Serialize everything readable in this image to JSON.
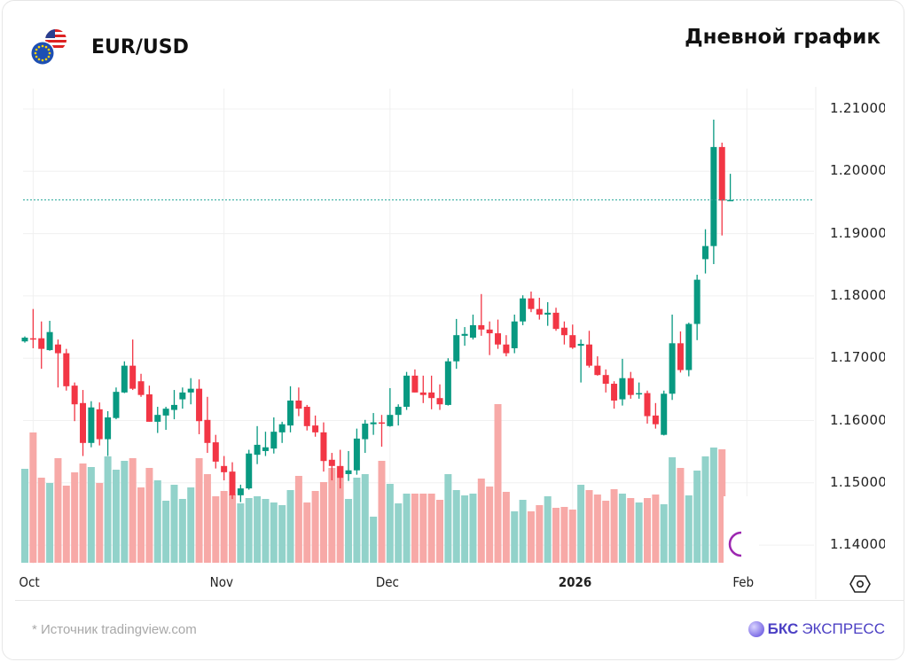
{
  "header": {
    "pair": "EUR/USD",
    "chart_type": "Дневной график",
    "icons": [
      "us-flag-icon",
      "eu-flag-icon"
    ]
  },
  "footer": {
    "source": "*  Источник tradingview.com",
    "brand_bold": "БКС",
    "brand_rest": "ЭКСПРЕСС"
  },
  "colors": {
    "up": "#089981",
    "down": "#f23645",
    "volume_up": "#92d2ca",
    "volume_down": "#f7a9a7",
    "last_price_line": "#26a69a",
    "grid": "#f0f0f0"
  },
  "chart_data": {
    "type": "candlestick",
    "title": "EUR/USD",
    "subtitle": "Дневной график",
    "y_ticks": [
      "1.21000",
      "1.20000",
      "1.19000",
      "1.18000",
      "1.17000",
      "1.16000",
      "1.15000",
      "1.14000"
    ],
    "y_tick_values": [
      1.21,
      1.2,
      1.19,
      1.18,
      1.17,
      1.16,
      1.15,
      1.14
    ],
    "ylim": [
      1.137,
      1.2145
    ],
    "x_ticks": [
      {
        "label": "Oct",
        "index": 1,
        "bold": false
      },
      {
        "label": "Nov",
        "index": 24,
        "bold": false
      },
      {
        "label": "Dec",
        "index": 44,
        "bold": false
      },
      {
        "label": "2026",
        "index": 66,
        "bold": true
      },
      {
        "label": "Feb",
        "index": 87,
        "bold": false
      }
    ],
    "last_price": 1.1954,
    "grid": true,
    "ohlc": [
      [
        1.1727,
        1.1735,
        1.1725,
        1.1733
      ],
      [
        1.1732,
        1.1779,
        1.1716,
        1.173
      ],
      [
        1.1732,
        1.1759,
        1.1683,
        1.1715
      ],
      [
        1.1713,
        1.176,
        1.1712,
        1.1742
      ],
      [
        1.1722,
        1.173,
        1.1653,
        1.1708
      ],
      [
        1.1708,
        1.1715,
        1.1648,
        1.1655
      ],
      [
        1.1656,
        1.1661,
        1.1599,
        1.1626
      ],
      [
        1.1628,
        1.1649,
        1.1543,
        1.1564
      ],
      [
        1.1564,
        1.1631,
        1.1557,
        1.1621
      ],
      [
        1.1618,
        1.1629,
        1.156,
        1.157
      ],
      [
        1.157,
        1.1615,
        1.1543,
        1.1605
      ],
      [
        1.1604,
        1.1653,
        1.1602,
        1.1646
      ],
      [
        1.1645,
        1.1695,
        1.1644,
        1.1688
      ],
      [
        1.1688,
        1.173,
        1.1649,
        1.1651
      ],
      [
        1.1663,
        1.1675,
        1.1638,
        1.1641
      ],
      [
        1.1642,
        1.1656,
        1.1598,
        1.1598
      ],
      [
        1.1598,
        1.1622,
        1.158,
        1.1609
      ],
      [
        1.1608,
        1.1622,
        1.1585,
        1.1619
      ],
      [
        1.1617,
        1.1649,
        1.1602,
        1.1625
      ],
      [
        1.1634,
        1.1653,
        1.1619,
        1.1645
      ],
      [
        1.1645,
        1.1668,
        1.1626,
        1.1651
      ],
      [
        1.1651,
        1.1666,
        1.1578,
        1.1599
      ],
      [
        1.1601,
        1.1638,
        1.1548,
        1.1564
      ],
      [
        1.1565,
        1.1577,
        1.1523,
        1.1534
      ],
      [
        1.1527,
        1.1543,
        1.1504,
        1.1517
      ],
      [
        1.1518,
        1.1533,
        1.1474,
        1.148
      ],
      [
        1.148,
        1.1497,
        1.1469,
        1.1491
      ],
      [
        1.1491,
        1.1553,
        1.1489,
        1.1547
      ],
      [
        1.1545,
        1.1591,
        1.153,
        1.1561
      ],
      [
        1.1551,
        1.1582,
        1.1543,
        1.1557
      ],
      [
        1.1555,
        1.1605,
        1.1547,
        1.1582
      ],
      [
        1.1581,
        1.1598,
        1.1564,
        1.1594
      ],
      [
        1.1592,
        1.1655,
        1.1581,
        1.1632
      ],
      [
        1.1632,
        1.1653,
        1.1607,
        1.1619
      ],
      [
        1.1622,
        1.1625,
        1.1584,
        1.1591
      ],
      [
        1.1592,
        1.1608,
        1.1574,
        1.1581
      ],
      [
        1.1581,
        1.1597,
        1.1518,
        1.1535
      ],
      [
        1.1537,
        1.1548,
        1.1504,
        1.1527
      ],
      [
        1.1527,
        1.1553,
        1.1491,
        1.1508
      ],
      [
        1.1514,
        1.1551,
        1.1503,
        1.152
      ],
      [
        1.152,
        1.1587,
        1.1513,
        1.1571
      ],
      [
        1.157,
        1.1601,
        1.1548,
        1.1595
      ],
      [
        1.1594,
        1.1612,
        1.1577,
        1.1597
      ],
      [
        1.1597,
        1.1609,
        1.1558,
        1.1595
      ],
      [
        1.1591,
        1.1652,
        1.159,
        1.1609
      ],
      [
        1.1609,
        1.1626,
        1.1592,
        1.1622
      ],
      [
        1.1622,
        1.1678,
        1.1617,
        1.1672
      ],
      [
        1.1672,
        1.1682,
        1.1645,
        1.1645
      ],
      [
        1.1645,
        1.1672,
        1.1628,
        1.1641
      ],
      [
        1.1645,
        1.1672,
        1.1618,
        1.1636
      ],
      [
        1.1636,
        1.1658,
        1.1617,
        1.1626
      ],
      [
        1.1625,
        1.17,
        1.1624,
        1.1695
      ],
      [
        1.1695,
        1.1763,
        1.1683,
        1.1737
      ],
      [
        1.1736,
        1.175,
        1.172,
        1.1739
      ],
      [
        1.1733,
        1.177,
        1.173,
        1.1753
      ],
      [
        1.1753,
        1.1803,
        1.1736,
        1.1746
      ],
      [
        1.1746,
        1.1759,
        1.1705,
        1.174
      ],
      [
        1.174,
        1.1762,
        1.1715,
        1.1722
      ],
      [
        1.1722,
        1.1737,
        1.1703,
        1.1708
      ],
      [
        1.1716,
        1.177,
        1.1708,
        1.1759
      ],
      [
        1.1759,
        1.1801,
        1.1753,
        1.1796
      ],
      [
        1.1796,
        1.1807,
        1.1774,
        1.1779
      ],
      [
        1.1779,
        1.1797,
        1.1762,
        1.177
      ],
      [
        1.177,
        1.179,
        1.1752,
        1.1773
      ],
      [
        1.1773,
        1.1781,
        1.1744,
        1.1747
      ],
      [
        1.1749,
        1.1759,
        1.1722,
        1.1737
      ],
      [
        1.1737,
        1.1754,
        1.1715,
        1.1717
      ],
      [
        1.172,
        1.173,
        1.1661,
        1.1723
      ],
      [
        1.1722,
        1.1744,
        1.1685,
        1.1688
      ],
      [
        1.1688,
        1.1703,
        1.1672,
        1.1673
      ],
      [
        1.1673,
        1.1682,
        1.1645,
        1.1659
      ],
      [
        1.1659,
        1.1663,
        1.1619,
        1.1632
      ],
      [
        1.1634,
        1.1699,
        1.1624,
        1.1668
      ],
      [
        1.1668,
        1.1678,
        1.1635,
        1.1641
      ],
      [
        1.1642,
        1.1661,
        1.1635,
        1.1644
      ],
      [
        1.1644,
        1.1648,
        1.1595,
        1.1607
      ],
      [
        1.1608,
        1.1628,
        1.1587,
        1.1594
      ],
      [
        1.1577,
        1.1648,
        1.1576,
        1.1643
      ],
      [
        1.1643,
        1.177,
        1.1633,
        1.1724
      ],
      [
        1.1724,
        1.1743,
        1.1677,
        1.1681
      ],
      [
        1.1681,
        1.1757,
        1.1671,
        1.1755
      ],
      [
        1.1755,
        1.1834,
        1.1729,
        1.1826
      ],
      [
        1.1859,
        1.1907,
        1.1836,
        1.188
      ],
      [
        1.188,
        1.2083,
        1.1851,
        1.2039
      ],
      [
        1.2039,
        1.2046,
        1.1897,
        1.1953
      ],
      [
        1.1953,
        1.1996,
        1.1953,
        1.1954
      ]
    ],
    "volume_relative": [
      106,
      147,
      96,
      90,
      118,
      87,
      102,
      112,
      108,
      90,
      120,
      105,
      115,
      118,
      85,
      107,
      93,
      70,
      88,
      72,
      85,
      118,
      100,
      75,
      81,
      77,
      67,
      73,
      75,
      72,
      68,
      65,
      82,
      98,
      68,
      81,
      91,
      107,
      109,
      72,
      96,
      100,
      52,
      115,
      89,
      67,
      78,
      78,
      78,
      78,
      71,
      100,
      82,
      76,
      78,
      95,
      86,
      179,
      80,
      58,
      71,
      58,
      65,
      75,
      62,
      63,
      60,
      88,
      82,
      77,
      70,
      83,
      78,
      73,
      68,
      73,
      77,
      66,
      119,
      107,
      76,
      104,
      120,
      130,
      128,
      40
    ]
  }
}
